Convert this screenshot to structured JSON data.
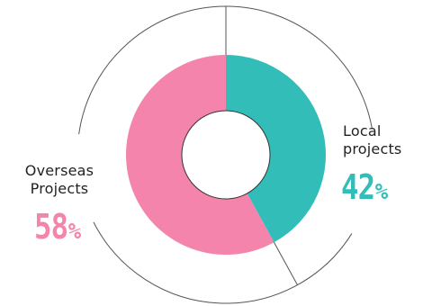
{
  "chart_data": {
    "type": "pie",
    "variant": "donut",
    "slices": [
      {
        "label_line1": "Local",
        "label_line2": "projects",
        "value": 42,
        "unit": "%",
        "color": "#33bdb9"
      },
      {
        "label_line1": "Overseas",
        "label_line2": "Projects",
        "value": 58,
        "unit": "%",
        "color": "#f484ab"
      }
    ],
    "start_angle_deg": 0,
    "direction": "clockwise",
    "outer_ring_color": "#555555",
    "hole_color": "#ffffff"
  }
}
